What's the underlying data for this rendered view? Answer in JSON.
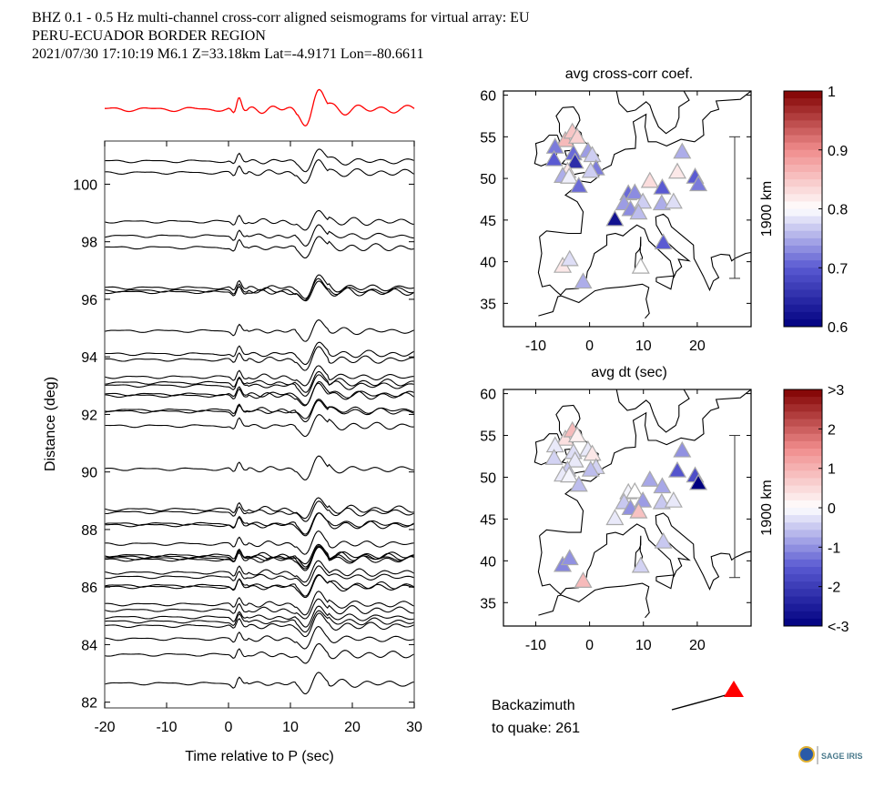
{
  "header": {
    "line1": "BHZ  0.1 - 0.5 Hz  multi-channel cross-corr aligned seismograms for virtual array: EU",
    "line2": "PERU-ECUADOR BORDER REGION",
    "line3": "2021/07/30  17:10:19  M6.1  Z=33.18km Lat=-4.9171 Lon=-80.6611"
  },
  "backazimuth": {
    "label1": "Backazimuth",
    "label2": "to quake:  261",
    "value": 261,
    "marker_color": "#ff0000"
  },
  "logo": {
    "text": "SAGE IRIS"
  },
  "chart_data": [
    {
      "type": "line",
      "name": "record-section",
      "xlabel": "Time relative to P (sec)",
      "ylabel": "Distance (deg)",
      "xlim": [
        -20,
        30
      ],
      "ylim": [
        81.8,
        101.5
      ],
      "xticks": [
        -20,
        -10,
        0,
        10,
        20,
        30
      ],
      "yticks": [
        82,
        84,
        86,
        88,
        90,
        92,
        94,
        96,
        98,
        100
      ],
      "stack_color": "#ff0000",
      "trace_distances": [
        100.8,
        100.4,
        98.7,
        98.2,
        97.8,
        96.4,
        96.3,
        96.25,
        94.9,
        94.1,
        93.9,
        93.3,
        93.1,
        93.0,
        92.7,
        92.65,
        92.15,
        92.1,
        91.6,
        90.1,
        88.7,
        88.6,
        88.2,
        88.15,
        87.5,
        87.1,
        87.05,
        87.0,
        86.95,
        86.5,
        86.35,
        86.05,
        86.0,
        85.4,
        85.2,
        84.95,
        84.8,
        84.65,
        84.2,
        83.65,
        82.65
      ]
    },
    {
      "type": "scatter",
      "name": "map-cross-corr",
      "title": "avg cross-corr coef.",
      "xlim": [
        -16,
        30
      ],
      "ylim": [
        32.2,
        60.5
      ],
      "xticks": [
        -10,
        0,
        10,
        20
      ],
      "yticks": [
        35,
        40,
        45,
        50,
        55,
        60
      ],
      "scale_bar_label": "1900 km",
      "colorbar": {
        "min": 0.6,
        "max": 1.0,
        "ticks": [
          "1",
          "0.9",
          "0.8",
          "0.7",
          "0.6"
        ],
        "tick_values": [
          1.0,
          0.9,
          0.8,
          0.7,
          0.6
        ]
      },
      "stations": [
        {
          "lon": -4.5,
          "lat": 54.6,
          "v": 0.86
        },
        {
          "lon": -3.2,
          "lat": 55.6,
          "v": 0.85
        },
        {
          "lon": -2.3,
          "lat": 55.0,
          "v": 0.84
        },
        {
          "lon": -6.4,
          "lat": 53.8,
          "v": 0.72
        },
        {
          "lon": -6.6,
          "lat": 52.3,
          "v": 0.7
        },
        {
          "lon": -3.0,
          "lat": 53.0,
          "v": 0.71
        },
        {
          "lon": -2.7,
          "lat": 52.0,
          "v": 0.65
        },
        {
          "lon": -0.3,
          "lat": 53.3,
          "v": 0.74
        },
        {
          "lon": 0.5,
          "lat": 52.8,
          "v": 0.77
        },
        {
          "lon": 1.2,
          "lat": 51.2,
          "v": 0.72
        },
        {
          "lon": 0.2,
          "lat": 50.9,
          "v": 0.77
        },
        {
          "lon": -4.1,
          "lat": 50.9,
          "v": 0.82
        },
        {
          "lon": -5.0,
          "lat": 50.3,
          "v": 0.75
        },
        {
          "lon": -3.8,
          "lat": 50.2,
          "v": 0.79
        },
        {
          "lon": -2.0,
          "lat": 49.1,
          "v": 0.71
        },
        {
          "lon": 11.2,
          "lat": 49.7,
          "v": 0.83
        },
        {
          "lon": 13.5,
          "lat": 48.9,
          "v": 0.7
        },
        {
          "lon": 16.3,
          "lat": 50.8,
          "v": 0.82
        },
        {
          "lon": 17.2,
          "lat": 53.2,
          "v": 0.75
        },
        {
          "lon": 19.6,
          "lat": 50.2,
          "v": 0.7
        },
        {
          "lon": 20.2,
          "lat": 49.3,
          "v": 0.72
        },
        {
          "lon": 7.2,
          "lat": 48.2,
          "v": 0.71
        },
        {
          "lon": 8.4,
          "lat": 48.3,
          "v": 0.73
        },
        {
          "lon": 9.9,
          "lat": 47.2,
          "v": 0.77
        },
        {
          "lon": 6.4,
          "lat": 47.0,
          "v": 0.74
        },
        {
          "lon": 7.6,
          "lat": 46.3,
          "v": 0.73
        },
        {
          "lon": 9.1,
          "lat": 45.9,
          "v": 0.76
        },
        {
          "lon": 13.4,
          "lat": 47.0,
          "v": 0.75
        },
        {
          "lon": 15.6,
          "lat": 47.2,
          "v": 0.78
        },
        {
          "lon": 4.7,
          "lat": 45.1,
          "v": 0.62
        },
        {
          "lon": 13.7,
          "lat": 42.3,
          "v": 0.7
        },
        {
          "lon": -5.0,
          "lat": 39.5,
          "v": 0.82
        },
        {
          "lon": -3.7,
          "lat": 40.3,
          "v": 0.78
        },
        {
          "lon": -1.2,
          "lat": 37.6,
          "v": 0.75
        },
        {
          "lon": 9.5,
          "lat": 39.4,
          "v": 0.8
        }
      ]
    },
    {
      "type": "scatter",
      "name": "map-dt",
      "title": "avg dt (sec)",
      "xlim": [
        -16,
        30
      ],
      "ylim": [
        32.2,
        60.5
      ],
      "xticks": [
        -10,
        0,
        10,
        20
      ],
      "yticks": [
        35,
        40,
        45,
        50,
        55,
        60
      ],
      "scale_bar_label": "1900 km",
      "colorbar": {
        "min": -3,
        "max": 3,
        "ticks": [
          ">3",
          "2",
          "1",
          "0",
          "-1",
          "-2",
          "<-3"
        ],
        "tick_values": [
          3,
          2,
          1,
          0,
          -1,
          -2,
          -3
        ]
      },
      "stations": [
        {
          "lon": -4.5,
          "lat": 54.6,
          "v": 0.4
        },
        {
          "lon": -3.2,
          "lat": 55.6,
          "v": 0.9
        },
        {
          "lon": -2.3,
          "lat": 55.0,
          "v": 0.2
        },
        {
          "lon": -6.4,
          "lat": 53.8,
          "v": -0.2
        },
        {
          "lon": -6.6,
          "lat": 52.3,
          "v": -0.4
        },
        {
          "lon": -3.0,
          "lat": 53.0,
          "v": -0.3
        },
        {
          "lon": -2.7,
          "lat": 52.0,
          "v": -0.2
        },
        {
          "lon": -0.3,
          "lat": 53.3,
          "v": -0.2
        },
        {
          "lon": 0.5,
          "lat": 52.8,
          "v": 0.3
        },
        {
          "lon": 1.2,
          "lat": 51.2,
          "v": -0.4
        },
        {
          "lon": 0.2,
          "lat": 50.9,
          "v": -0.6
        },
        {
          "lon": -4.1,
          "lat": 50.9,
          "v": -0.5
        },
        {
          "lon": -5.0,
          "lat": 50.3,
          "v": -0.2
        },
        {
          "lon": -3.8,
          "lat": 50.2,
          "v": -0.1
        },
        {
          "lon": -2.0,
          "lat": 49.1,
          "v": -0.6
        },
        {
          "lon": 11.2,
          "lat": 49.7,
          "v": -0.8
        },
        {
          "lon": 13.5,
          "lat": 48.9,
          "v": -0.8
        },
        {
          "lon": 16.3,
          "lat": 50.8,
          "v": -1.6
        },
        {
          "lon": 17.2,
          "lat": 53.2,
          "v": -1.0
        },
        {
          "lon": 19.6,
          "lat": 50.2,
          "v": -1.7
        },
        {
          "lon": 20.2,
          "lat": 49.3,
          "v": -3.0
        },
        {
          "lon": 7.2,
          "lat": 48.2,
          "v": -0.1
        },
        {
          "lon": 8.4,
          "lat": 48.3,
          "v": 0.0
        },
        {
          "lon": 9.9,
          "lat": 47.2,
          "v": -0.9
        },
        {
          "lon": 6.4,
          "lat": 47.0,
          "v": -0.5
        },
        {
          "lon": 7.6,
          "lat": 46.3,
          "v": -1.0
        },
        {
          "lon": 9.1,
          "lat": 45.9,
          "v": 0.8
        },
        {
          "lon": 13.4,
          "lat": 47.0,
          "v": -0.5
        },
        {
          "lon": 15.6,
          "lat": 47.2,
          "v": -0.2
        },
        {
          "lon": 4.7,
          "lat": 45.1,
          "v": -0.2
        },
        {
          "lon": 13.7,
          "lat": 42.3,
          "v": -0.5
        },
        {
          "lon": -5.0,
          "lat": 39.5,
          "v": -1.1
        },
        {
          "lon": -3.7,
          "lat": 40.3,
          "v": -1.0
        },
        {
          "lon": -1.2,
          "lat": 37.6,
          "v": 0.9
        },
        {
          "lon": 9.5,
          "lat": 39.4,
          "v": -0.4
        }
      ]
    }
  ]
}
